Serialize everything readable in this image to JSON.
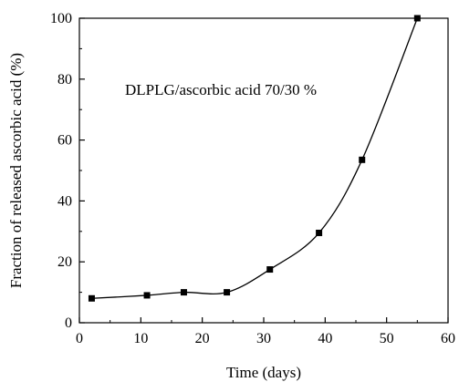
{
  "chart_data": {
    "type": "line",
    "xlabel": "Time (days)",
    "ylabel": "Fraction of released ascorbic acid (%)",
    "annotation": "DLPLG/ascorbic acid 70/30 %",
    "xlim": [
      0,
      60
    ],
    "ylim": [
      0,
      100
    ],
    "xticks": [
      "0",
      "10",
      "20",
      "30",
      "40",
      "50",
      "60"
    ],
    "yticks": [
      "0",
      "20",
      "40",
      "60",
      "80",
      "100"
    ],
    "grid": false,
    "series": [
      {
        "x": [
          2,
          11,
          17,
          24,
          31,
          39,
          46,
          55
        ],
        "y": [
          8,
          9,
          10,
          10,
          17.5,
          29.5,
          53.5,
          100
        ],
        "color": "#000000",
        "marker": "square"
      }
    ]
  }
}
